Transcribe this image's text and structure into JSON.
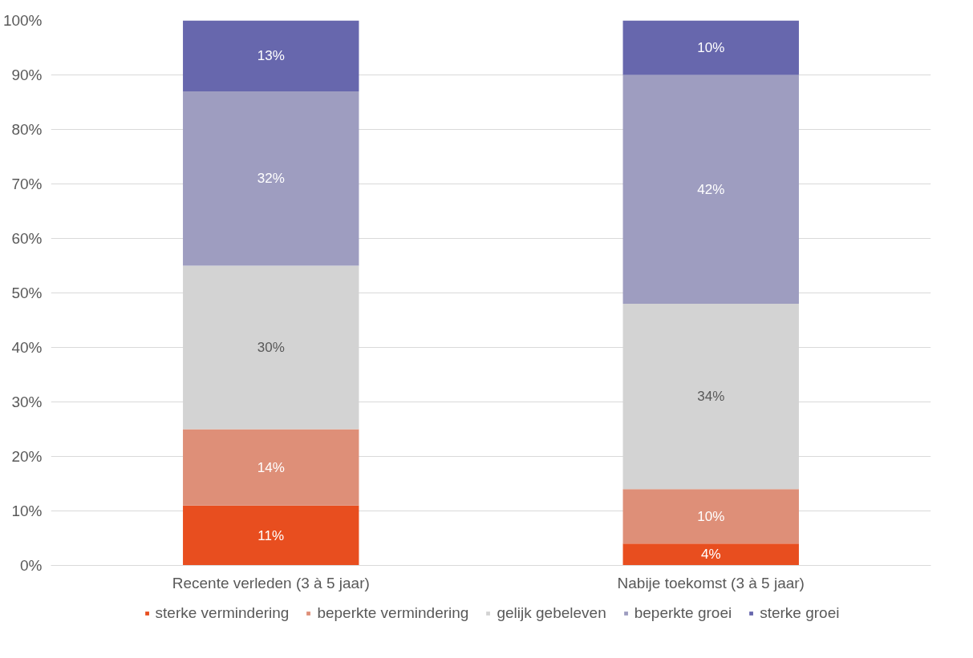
{
  "chart_data": {
    "type": "bar",
    "stacked": true,
    "categories": [
      "Recente verleden (3 à 5 jaar)",
      "Nabije toekomst (3 à 5 jaar)"
    ],
    "series": [
      {
        "name": "sterke vermindering",
        "color": "#e84e1f",
        "values": [
          11,
          4
        ],
        "value_labels": [
          "11%",
          "4%"
        ]
      },
      {
        "name": "beperkte vermindering",
        "color": "#de8f78",
        "values": [
          14,
          10
        ],
        "value_labels": [
          "14%",
          "10%"
        ]
      },
      {
        "name": "gelijk gebeleven",
        "color": "#d3d3d3",
        "values": [
          30,
          34
        ],
        "value_labels": [
          "30%",
          "34%"
        ]
      },
      {
        "name": "beperkte groei",
        "color": "#9e9dc0",
        "values": [
          32,
          42
        ],
        "value_labels": [
          "32%",
          "42%"
        ]
      },
      {
        "name": "sterke groei",
        "color": "#6767ad",
        "values": [
          13,
          10
        ],
        "value_labels": [
          "13%",
          "10%"
        ]
      }
    ],
    "ylim": [
      0,
      100
    ],
    "yticks": [
      {
        "value": 0,
        "label": "0%"
      },
      {
        "value": 10,
        "label": "10%"
      },
      {
        "value": 20,
        "label": "20%"
      },
      {
        "value": 30,
        "label": "30%"
      },
      {
        "value": 40,
        "label": "40%"
      },
      {
        "value": 50,
        "label": "50%"
      },
      {
        "value": 60,
        "label": "60%"
      },
      {
        "value": 70,
        "label": "70%"
      },
      {
        "value": 80,
        "label": "80%"
      },
      {
        "value": 90,
        "label": "90%"
      },
      {
        "value": 100,
        "label": "100%"
      }
    ],
    "grid": "y",
    "legend": "bottom"
  }
}
